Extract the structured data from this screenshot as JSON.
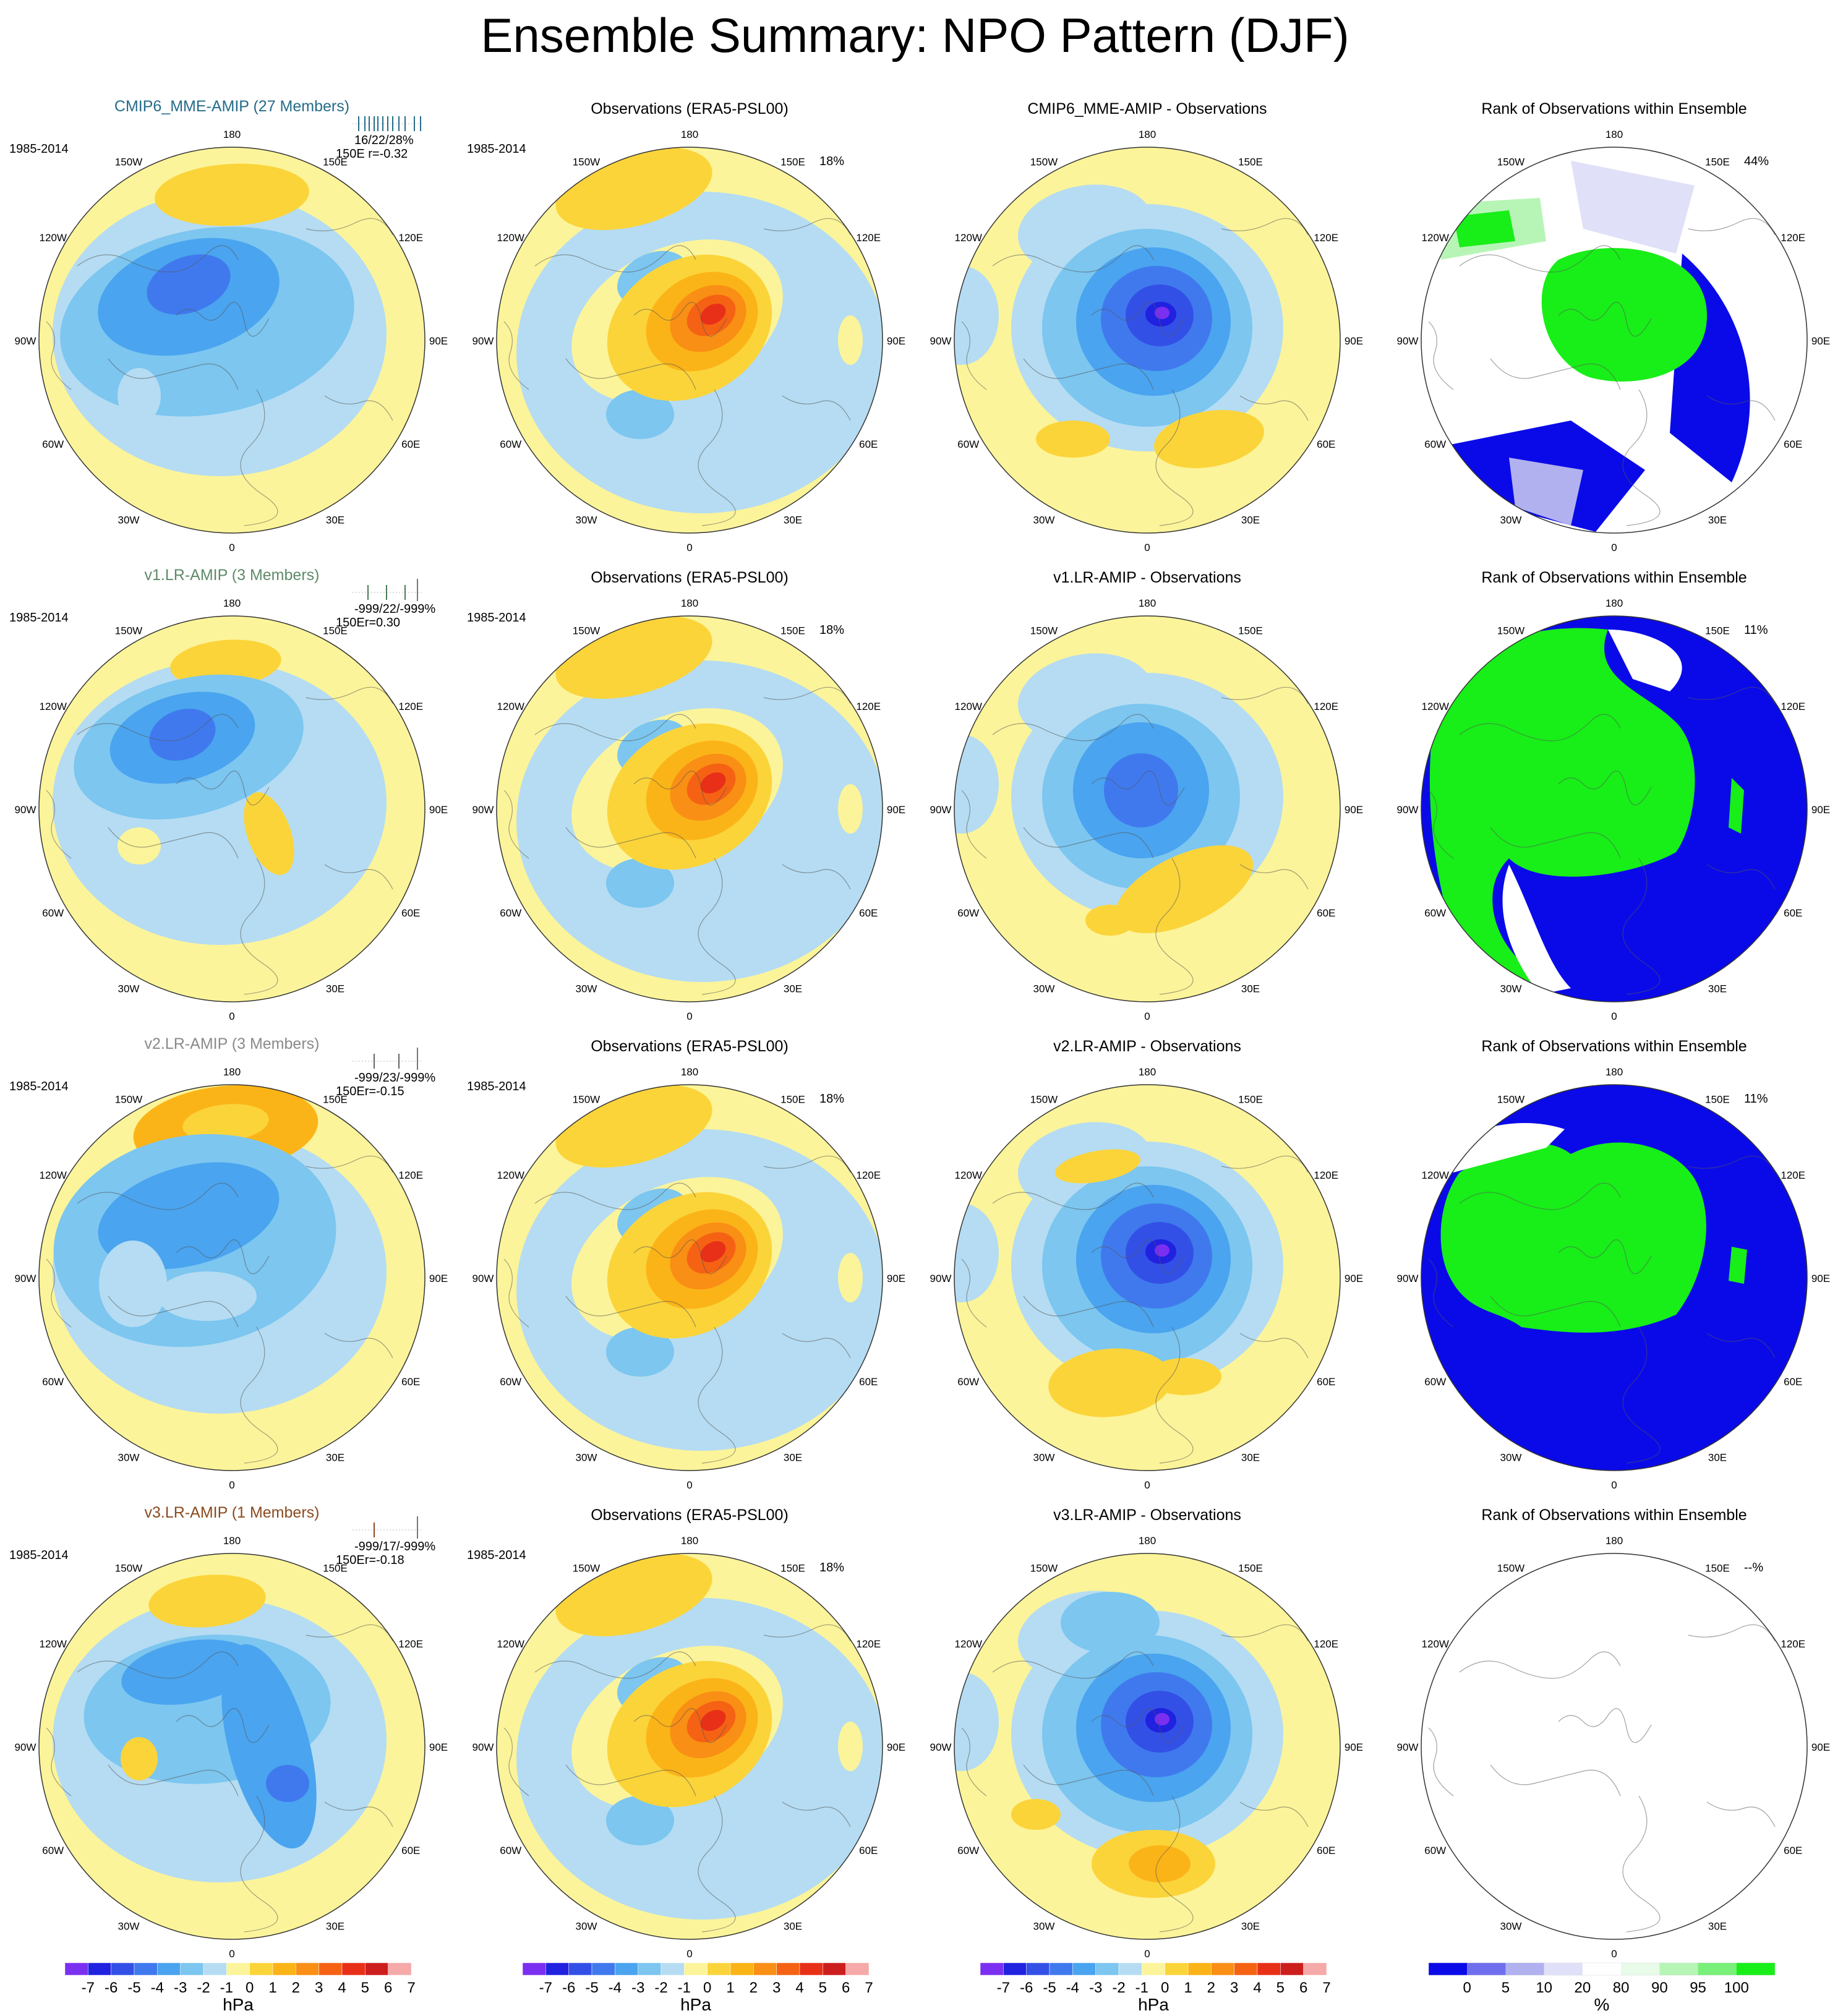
{
  "title": "Ensemble Summary: NPO Pattern (DJF)",
  "period": "1985-2014",
  "longitude_labels": [
    "180",
    "150E",
    "120E",
    "90E",
    "60E",
    "30E",
    "0",
    "30W",
    "60W",
    "90W",
    "120W",
    "150W"
  ],
  "colors": {
    "hpa_scale": [
      "#7b2ff0",
      "#2121e0",
      "#3350e6",
      "#4079ee",
      "#4aa4ef",
      "#7cc6f0",
      "#b5dcf2",
      "#fcf49a",
      "#fbd43a",
      "#fbb417",
      "#f98f14",
      "#f56214",
      "#e83018",
      "#cd1e1e",
      "#f5a9a9"
    ],
    "rank_scale": [
      "#0a0ae8",
      "#6f6fee",
      "#b1b1f0",
      "#e0e0f8",
      "#ffffff",
      "#e8fbe8",
      "#b7f5b7",
      "#79f079",
      "#18ee18"
    ]
  },
  "colorbars": {
    "hpa_ticks": [
      "-7",
      "-6",
      "-5",
      "-4",
      "-3",
      "-2",
      "-1",
      "0",
      "1",
      "2",
      "3",
      "4",
      "5",
      "6",
      "7"
    ],
    "hpa_unit": "hPa",
    "rank_ticks": [
      "0",
      "5",
      "10",
      "20",
      "80",
      "90",
      "95",
      "100"
    ],
    "rank_unit": "%"
  },
  "rows": [
    {
      "model": {
        "title": "CMIP6_MME-AMIP (27 Members)",
        "title_color": "#256c8a",
        "stats": "16/22/28%",
        "corr_label": "150E  r=-0.32",
        "rank_bar_color": "#256c8a"
      },
      "obs": {
        "title": "Observations (ERA5-PSL00)",
        "pct": "18%"
      },
      "diff": {
        "title": "CMIP6_MME-AMIP - Observations"
      },
      "rank": {
        "title": "Rank of Observations within Ensemble",
        "pct": "44%"
      }
    },
    {
      "model": {
        "title": "v1.LR-AMIP (3 Members)",
        "title_color": "#5e8a68",
        "stats": "-999/22/-999%",
        "corr_label": "150Er=0.30",
        "rank_bar_color": "#4a7a55"
      },
      "obs": {
        "title": "Observations (ERA5-PSL00)",
        "pct": "18%"
      },
      "diff": {
        "title": "v1.LR-AMIP - Observations"
      },
      "rank": {
        "title": "Rank of Observations within Ensemble",
        "pct": "11%"
      }
    },
    {
      "model": {
        "title": "v2.LR-AMIP (3 Members)",
        "title_color": "#8a8a8a",
        "stats": "-999/23/-999%",
        "corr_label": "150Er=-0.15",
        "rank_bar_color": "#666666"
      },
      "obs": {
        "title": "Observations (ERA5-PSL00)",
        "pct": "18%"
      },
      "diff": {
        "title": "v2.LR-AMIP - Observations"
      },
      "rank": {
        "title": "Rank of Observations within Ensemble",
        "pct": "11%"
      }
    },
    {
      "model": {
        "title": "v3.LR-AMIP (1 Members)",
        "title_color": "#8b4a1e",
        "stats": "-999/17/-999%",
        "corr_label": "150Er=-0.18",
        "rank_bar_color": "#8b4a1e"
      },
      "obs": {
        "title": "Observations (ERA5-PSL00)",
        "pct": "18%",
        "show_period": true
      },
      "diff": {
        "title": "v3.LR-AMIP - Observations"
      },
      "rank": {
        "title": "Rank of Observations within Ensemble",
        "pct": "--%"
      }
    }
  ]
}
